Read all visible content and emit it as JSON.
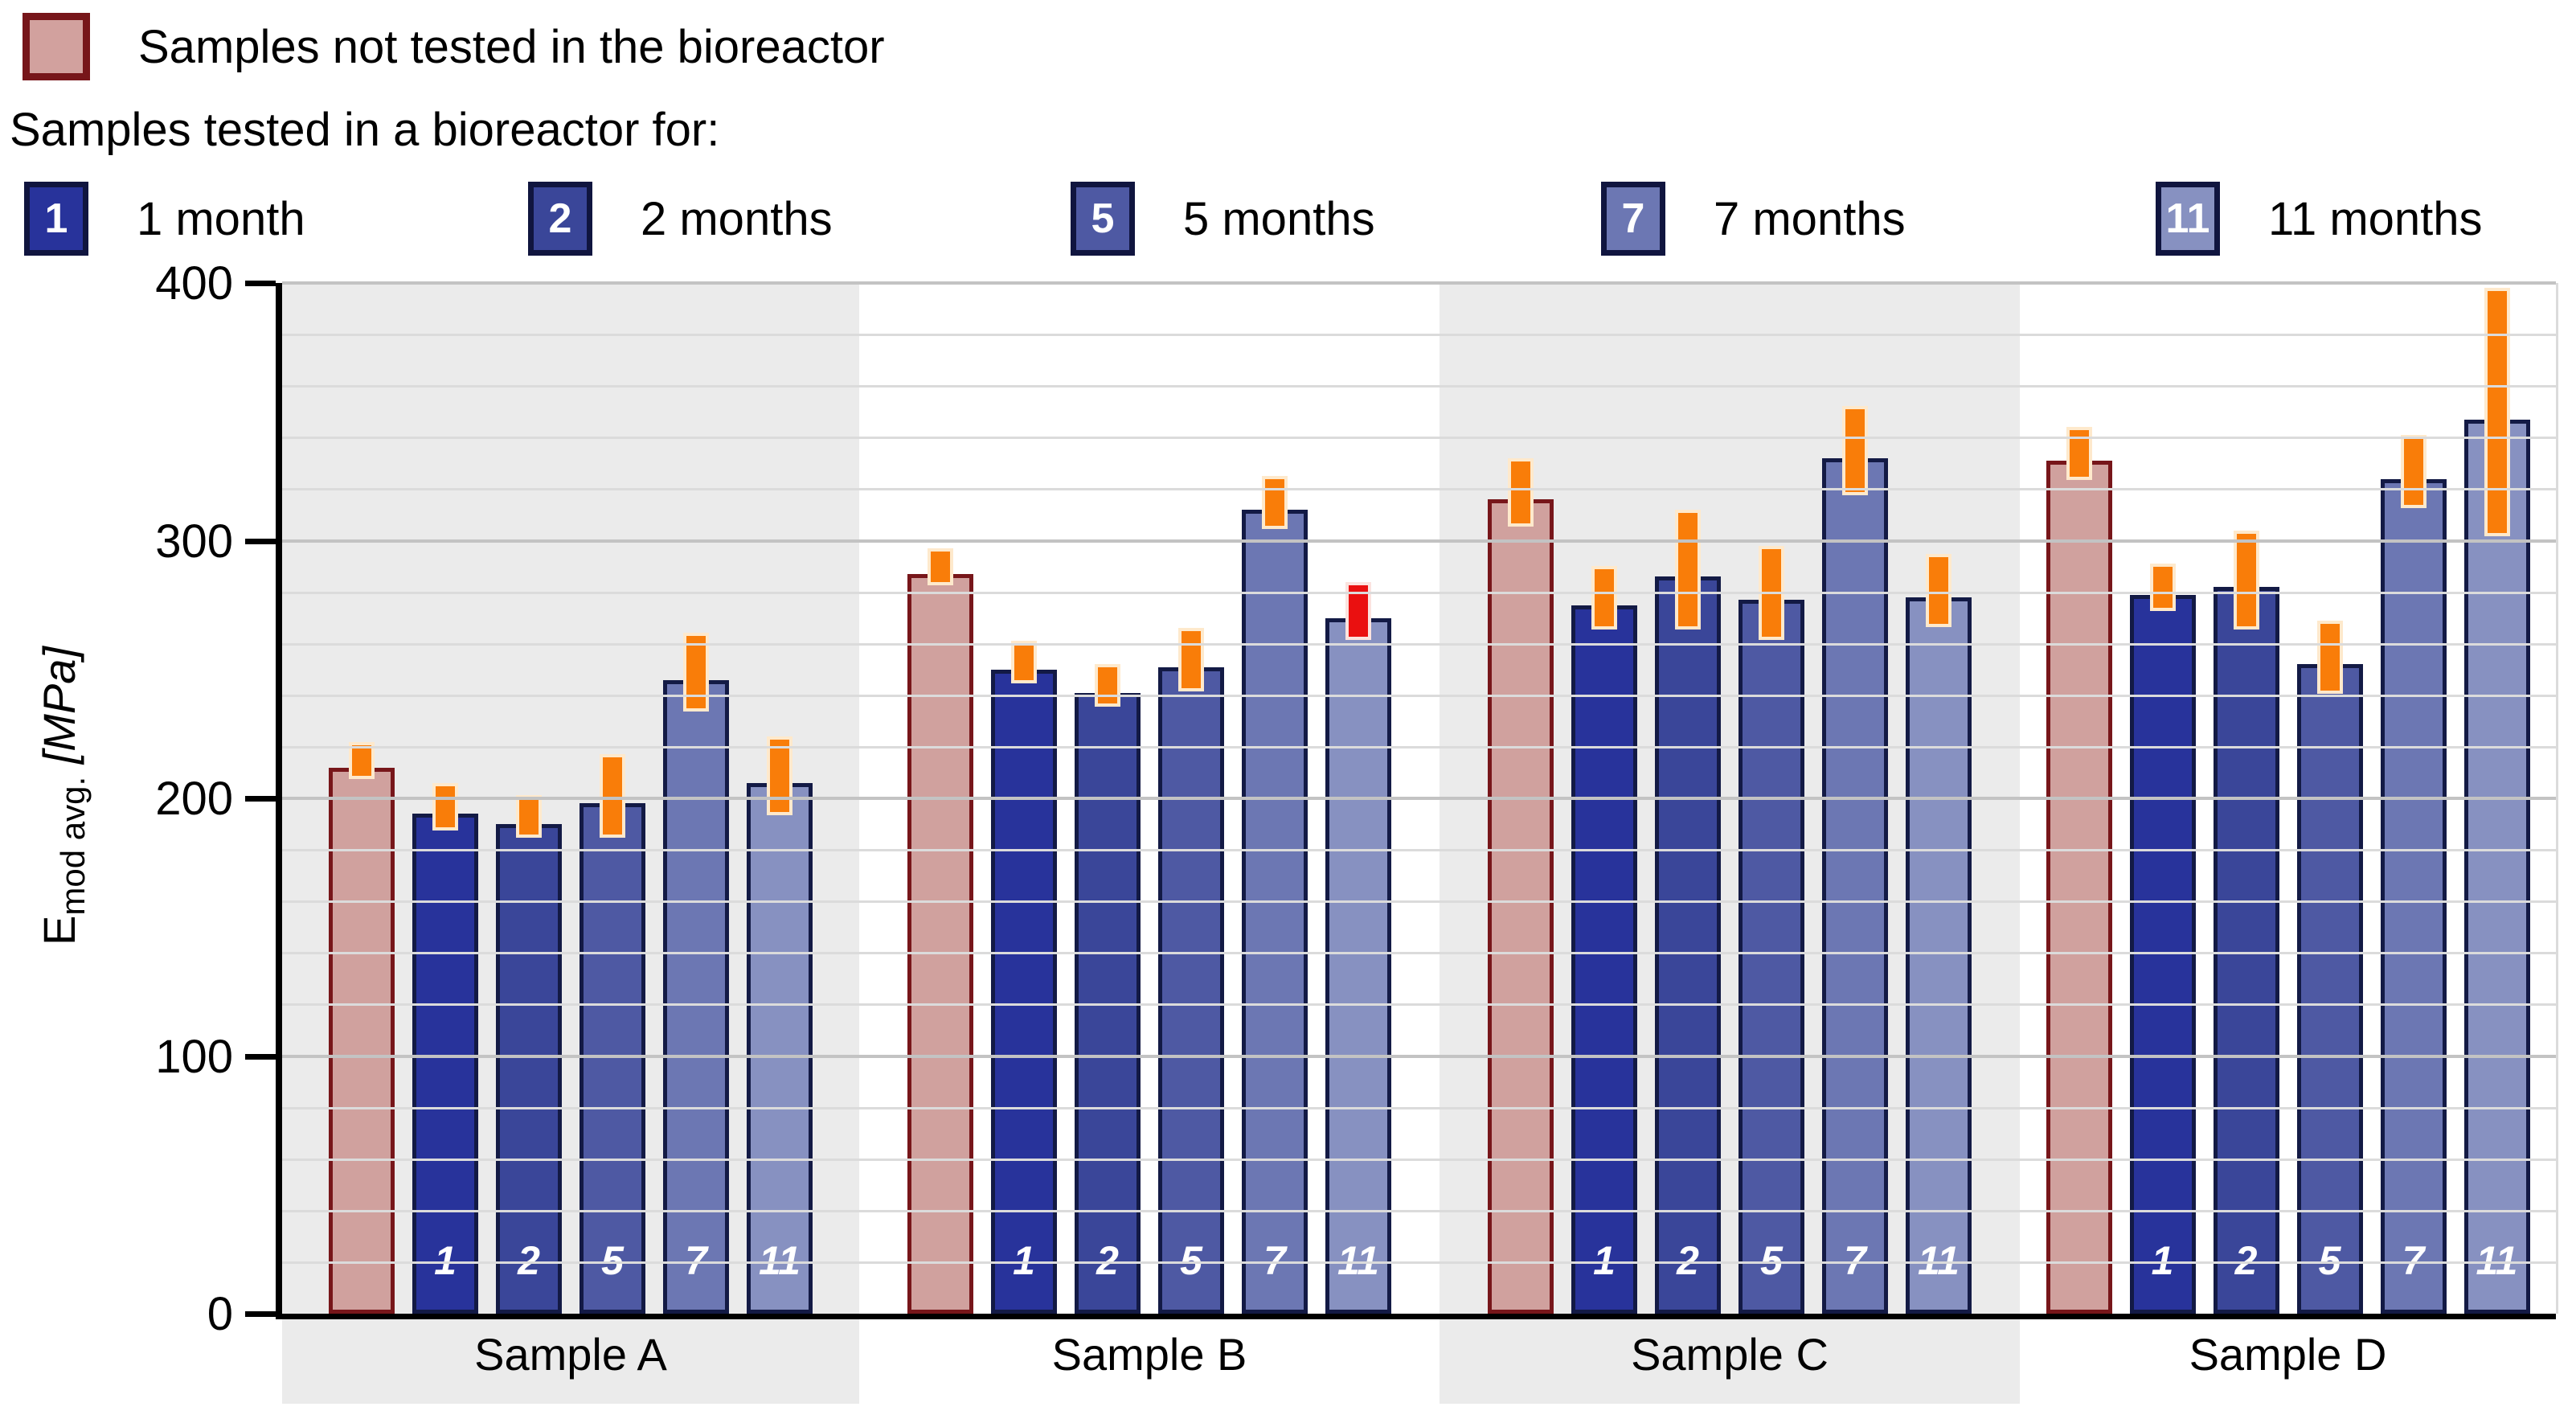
{
  "legend": {
    "not_tested_label": "Samples not tested in the bioreactor",
    "tested_heading": "Samples tested in a bioreactor for:",
    "items": [
      {
        "key": "1",
        "label": "1 month",
        "color": "#28339B"
      },
      {
        "key": "2",
        "label": "2 months",
        "color": "#3A4699"
      },
      {
        "key": "5",
        "label": "5 months",
        "color": "#4E59A3"
      },
      {
        "key": "7",
        "label": "7 months",
        "color": "#6C77B3"
      },
      {
        "key": "11",
        "label": "11 months",
        "color": "#8791C1"
      }
    ]
  },
  "axis": {
    "y_label_main": "E",
    "y_label_sub": "mod avg.",
    "y_label_unit": "[MPa]",
    "y_ticks": [
      0,
      100,
      200,
      300,
      400
    ],
    "y_max": 400,
    "minor_step": 20
  },
  "colors": {
    "band_gray": "#EBEBEB",
    "band_white": "#FFFFFF",
    "grid_minor": "#DBDBDB",
    "grid_major": "#C3C3C3",
    "axis_black": "#000000",
    "control_fill": "#D0A19E",
    "control_border": "#77161A",
    "bar_border": "#131A45",
    "error_orange": "#F97D09",
    "error_orange_halo": "#FEE9CC",
    "error_red": "#EA1010",
    "error_red_halo": "#FBE3DF"
  },
  "chart_data": {
    "type": "bar",
    "title": "",
    "xlabel": "",
    "ylabel": "Emod avg. [MPa]",
    "ylim": [
      0,
      400
    ],
    "grid": "horizontal, minor every 20 MPa, major every 100 MPa",
    "legend_position": "top",
    "categories": [
      "Sample A",
      "Sample B",
      "Sample C",
      "Sample D"
    ],
    "series_keys": [
      "control",
      "1",
      "2",
      "5",
      "7",
      "11"
    ],
    "groups": [
      {
        "label": "Sample A",
        "bars": [
          {
            "key": "control",
            "value": 212,
            "err": 6,
            "err_color": "orange"
          },
          {
            "key": "1",
            "value": 194,
            "err": 8,
            "err_color": "orange"
          },
          {
            "key": "2",
            "value": 190,
            "err": 7,
            "err_color": "orange"
          },
          {
            "key": "5",
            "value": 198,
            "err": 15,
            "err_color": "orange"
          },
          {
            "key": "7",
            "value": 246,
            "err": 14,
            "err_color": "orange"
          },
          {
            "key": "11",
            "value": 206,
            "err": 14,
            "err_color": "orange"
          }
        ]
      },
      {
        "label": "Sample B",
        "bars": [
          {
            "key": "control",
            "value": 287,
            "err": 6,
            "err_color": "orange"
          },
          {
            "key": "1",
            "value": 250,
            "err": 7,
            "err_color": "orange"
          },
          {
            "key": "2",
            "value": 241,
            "err": 7,
            "err_color": "orange"
          },
          {
            "key": "5",
            "value": 251,
            "err": 11,
            "err_color": "orange"
          },
          {
            "key": "7",
            "value": 312,
            "err": 9,
            "err_color": "orange"
          },
          {
            "key": "11",
            "value": 270,
            "err": 10,
            "err_color": "red"
          }
        ]
      },
      {
        "label": "Sample C",
        "bars": [
          {
            "key": "control",
            "value": 316,
            "err": 12,
            "err_color": "orange"
          },
          {
            "key": "1",
            "value": 275,
            "err": 11,
            "err_color": "orange"
          },
          {
            "key": "2",
            "value": 286,
            "err": 22,
            "err_color": "orange"
          },
          {
            "key": "5",
            "value": 277,
            "err": 17,
            "err_color": "orange"
          },
          {
            "key": "7",
            "value": 332,
            "err": 16,
            "err_color": "orange"
          },
          {
            "key": "11",
            "value": 278,
            "err": 13,
            "err_color": "orange"
          }
        ]
      },
      {
        "label": "Sample D",
        "bars": [
          {
            "key": "control",
            "value": 331,
            "err": 9,
            "err_color": "orange"
          },
          {
            "key": "1",
            "value": 279,
            "err": 8,
            "err_color": "orange"
          },
          {
            "key": "2",
            "value": 282,
            "err": 18,
            "err_color": "orange"
          },
          {
            "key": "5",
            "value": 252,
            "err": 13,
            "err_color": "orange"
          },
          {
            "key": "7",
            "value": 324,
            "err": 13,
            "err_color": "orange"
          },
          {
            "key": "11",
            "value": 347,
            "err": 47,
            "err_color": "orange"
          }
        ]
      }
    ]
  }
}
